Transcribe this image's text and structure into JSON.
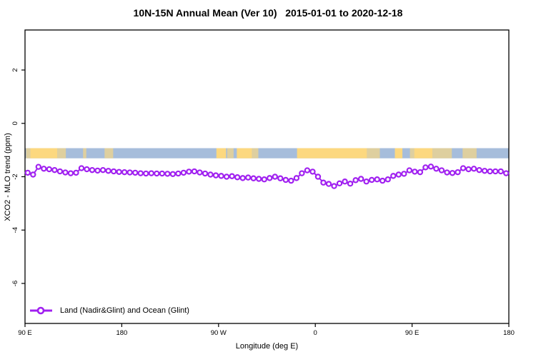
{
  "title": "10N-15N Annual Mean (Ver 10)   2015-01-01 to 2020-12-18",
  "chart_data": {
    "type": "line",
    "title": "10N-15N Annual Mean (Ver 10)   2015-01-01 to 2020-12-18",
    "xlabel": "Longitude (deg E)",
    "ylabel": "XCO2 - MLO trend (ppm)",
    "xlim": [
      90,
      540
    ],
    "ylim": [
      -7.5,
      3.5
    ],
    "grid": false,
    "x_ticks": [
      {
        "value": 90,
        "label": "90 E"
      },
      {
        "value": 180,
        "label": "180"
      },
      {
        "value": 270,
        "label": "90 W"
      },
      {
        "value": 360,
        "label": "0"
      },
      {
        "value": 450,
        "label": "90 E"
      },
      {
        "value": 540,
        "label": "180"
      }
    ],
    "y_ticks": [
      {
        "value": 2,
        "label": "2"
      },
      {
        "value": 0,
        "label": "0"
      },
      {
        "value": -2,
        "label": "-2"
      },
      {
        "value": -4,
        "label": "-4"
      },
      {
        "value": -6,
        "label": "-6"
      }
    ],
    "legend": {
      "position": "bottom-left",
      "label": "Land (Nadir&Glint) and Ocean (Glint)",
      "symbol": "line-with-open-circle",
      "color": "#A020F0"
    },
    "map_band": {
      "description": "10N-15N latitude strip map: ocean blue, land yellow",
      "value_range": [
        -1.31,
        -0.93
      ],
      "ocean_color": "#A6BDDB",
      "land_color": "#FCD87F",
      "land_patches": [
        {
          "lon": [
            91,
            95
          ],
          "style": "speckled"
        },
        {
          "lon": [
            95,
            120
          ],
          "style": "solid"
        },
        {
          "lon": [
            120,
            128
          ],
          "style": "speckled"
        },
        {
          "lon": [
            144,
            147
          ],
          "style": "speckled"
        },
        {
          "lon": [
            164,
            172
          ],
          "style": "speckled"
        },
        {
          "lon": [
            268,
            277
          ],
          "style": "solid"
        },
        {
          "lon": [
            278,
            284
          ],
          "style": "speckled"
        },
        {
          "lon": [
            287,
            301
          ],
          "style": "solid"
        },
        {
          "lon": [
            301,
            307
          ],
          "style": "speckled"
        },
        {
          "lon": [
            343,
            408
          ],
          "style": "solid"
        },
        {
          "lon": [
            408,
            420
          ],
          "style": "speckled"
        },
        {
          "lon": [
            434,
            441
          ],
          "style": "solid"
        },
        {
          "lon": [
            448,
            452
          ],
          "style": "speckled"
        },
        {
          "lon": [
            452,
            469
          ],
          "style": "solid"
        },
        {
          "lon": [
            469,
            487
          ],
          "style": "speckled"
        },
        {
          "lon": [
            497,
            510
          ],
          "style": "speckled"
        }
      ]
    },
    "series": [
      {
        "name": "Land (Nadir&Glint) and Ocean (Glint)",
        "color": "#A020F0",
        "marker": "open-circle",
        "x": [
          92.5,
          97.5,
          102.5,
          107.5,
          112.5,
          117.5,
          122.5,
          127.5,
          132.5,
          137.5,
          142.5,
          147.5,
          152.5,
          157.5,
          162.5,
          167.5,
          172.5,
          177.5,
          182.5,
          187.5,
          192.5,
          197.5,
          202.5,
          207.5,
          212.5,
          217.5,
          222.5,
          227.5,
          232.5,
          237.5,
          242.5,
          247.5,
          252.5,
          257.5,
          262.5,
          267.5,
          272.5,
          277.5,
          282.5,
          287.5,
          292.5,
          297.5,
          302.5,
          307.5,
          312.5,
          317.5,
          322.5,
          327.5,
          332.5,
          337.5,
          342.5,
          347.5,
          352.5,
          357.5,
          362.5,
          367.5,
          372.5,
          377.5,
          382.5,
          387.5,
          392.5,
          397.5,
          402.5,
          407.5,
          412.5,
          417.5,
          422.5,
          427.5,
          432.5,
          437.5,
          442.5,
          447.5,
          452.5,
          457.5,
          462.5,
          467.5,
          472.5,
          477.5,
          482.5,
          487.5,
          492.5,
          497.5,
          502.5,
          507.5,
          512.5,
          517.5,
          522.5,
          527.5,
          532.5,
          537.5
        ],
        "y": [
          -1.85,
          -1.92,
          -1.63,
          -1.7,
          -1.72,
          -1.75,
          -1.8,
          -1.84,
          -1.87,
          -1.85,
          -1.68,
          -1.72,
          -1.75,
          -1.77,
          -1.75,
          -1.78,
          -1.8,
          -1.82,
          -1.83,
          -1.84,
          -1.85,
          -1.87,
          -1.88,
          -1.87,
          -1.88,
          -1.88,
          -1.89,
          -1.9,
          -1.88,
          -1.85,
          -1.81,
          -1.8,
          -1.84,
          -1.88,
          -1.92,
          -1.95,
          -1.97,
          -2.0,
          -1.98,
          -2.02,
          -2.05,
          -2.03,
          -2.06,
          -2.08,
          -2.1,
          -2.05,
          -2.0,
          -2.06,
          -2.12,
          -2.15,
          -2.05,
          -1.87,
          -1.76,
          -1.81,
          -2.0,
          -2.22,
          -2.27,
          -2.35,
          -2.25,
          -2.18,
          -2.26,
          -2.13,
          -2.08,
          -2.18,
          -2.12,
          -2.1,
          -2.15,
          -2.1,
          -1.97,
          -1.92,
          -1.89,
          -1.76,
          -1.81,
          -1.83,
          -1.65,
          -1.62,
          -1.7,
          -1.76,
          -1.84,
          -1.86,
          -1.83,
          -1.68,
          -1.72,
          -1.7,
          -1.75,
          -1.78,
          -1.8,
          -1.8,
          -1.8,
          -1.87
        ]
      }
    ]
  },
  "colors": {
    "axis": "#000000",
    "background": "#ffffff",
    "series": "#A020F0",
    "ocean": "#A6BDDB",
    "land": "#FCD87F"
  }
}
